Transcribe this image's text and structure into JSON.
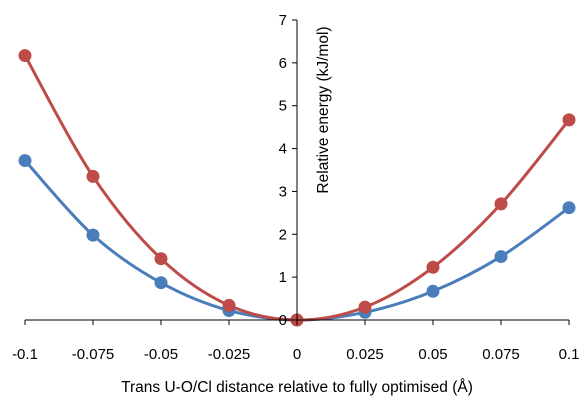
{
  "chart_data": {
    "type": "scatter",
    "title": "",
    "xlabel": "Trans U-O/Cl distance relative to fully optimised (Å)",
    "ylabel": "Relative energy (kJ/mol)",
    "xlim": [
      -0.1,
      0.1
    ],
    "ylim": [
      0,
      7
    ],
    "x_ticks": [
      "-0.1",
      "-0.075",
      "-0.05",
      "-0.025",
      "0",
      "0.025",
      "0.05",
      "0.075",
      "0.1"
    ],
    "y_ticks": [
      "0",
      "1",
      "2",
      "3",
      "4",
      "5",
      "6",
      "7"
    ],
    "grid": false,
    "legend": "none",
    "smooth_lines": true,
    "x": [
      -0.1,
      -0.075,
      -0.05,
      -0.025,
      0,
      0.025,
      0.05,
      0.075,
      0.1
    ],
    "series": [
      {
        "color": "#4a7ebb",
        "values": [
          3.72,
          1.98,
          0.87,
          0.22,
          0,
          0.18,
          0.67,
          1.48,
          2.62
        ]
      },
      {
        "color": "#be4b48",
        "values": [
          6.17,
          3.35,
          1.43,
          0.34,
          0,
          0.3,
          1.23,
          2.71,
          4.67
        ]
      }
    ]
  }
}
